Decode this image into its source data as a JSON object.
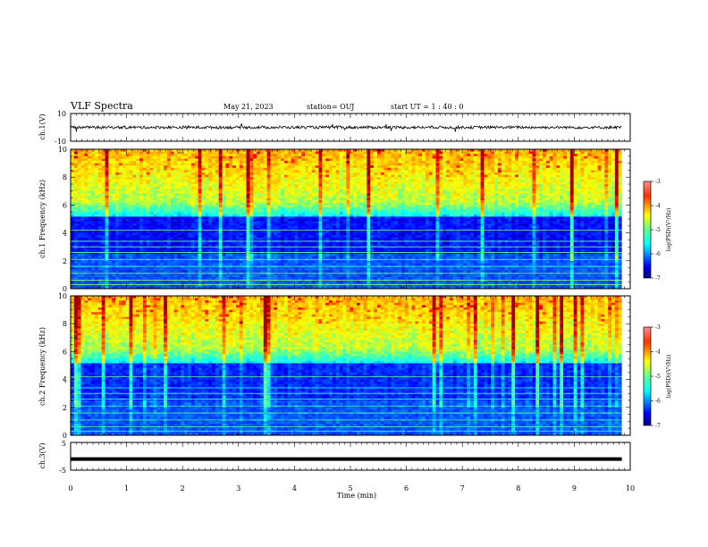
{
  "header": {
    "title": "VLF Spectra",
    "date": "May 21, 2023",
    "station": "station= OUJ",
    "start": "start  UT =   1 : 40 : 0"
  },
  "chart_data": [
    {
      "type": "line",
      "name": "waveform-ch1",
      "ylabel": "ch.1(V)",
      "ylim": [
        -10,
        10
      ],
      "ytick_labels": [
        "10",
        "-10"
      ],
      "xlim": [
        0,
        10
      ],
      "baseline_value": 0,
      "noise_amplitude": 1
    },
    {
      "type": "heatmap",
      "name": "spectrogram-ch1",
      "ylabel": "ch.1  Frequency (kHz)",
      "ylim": [
        0,
        10
      ],
      "yticks": [
        0,
        2,
        4,
        6,
        8,
        10
      ],
      "xlim": [
        0,
        10
      ],
      "data_end_min": 9.85,
      "colorbar": {
        "label": "log(PSD)(V²/Hz)",
        "range": [
          -7,
          -3
        ],
        "ticks": [
          -7,
          -6,
          -5,
          -4,
          -3
        ]
      }
    },
    {
      "type": "heatmap",
      "name": "spectrogram-ch2",
      "ylabel": "ch.2  Frequency (kHz)",
      "ylim": [
        0,
        10
      ],
      "yticks": [
        0,
        2,
        4,
        6,
        8,
        10
      ],
      "xlim": [
        0,
        10
      ],
      "data_end_min": 9.85,
      "colorbar": {
        "label": "log(PSD)(V²/Hz)",
        "range": [
          -7,
          -3
        ],
        "ticks": [
          -7,
          -6,
          -5,
          -4,
          -3
        ]
      }
    },
    {
      "type": "line",
      "name": "waveform-ch3",
      "ylabel": "ch.3(V)",
      "ylim": [
        -5,
        5
      ],
      "ytick_labels": [
        "5",
        "-5"
      ],
      "xlim": [
        0,
        10
      ],
      "baseline_value": -1
    }
  ],
  "xaxis": {
    "label": "Time (min)",
    "ticks": [
      0,
      1,
      2,
      3,
      4,
      5,
      6,
      7,
      8,
      9,
      10
    ]
  },
  "colors": {
    "colormap": [
      "#00007f",
      "#0000ff",
      "#0080ff",
      "#00ffff",
      "#80ff80",
      "#ffff00",
      "#ff8000",
      "#ff0000",
      "#7f0000"
    ]
  }
}
